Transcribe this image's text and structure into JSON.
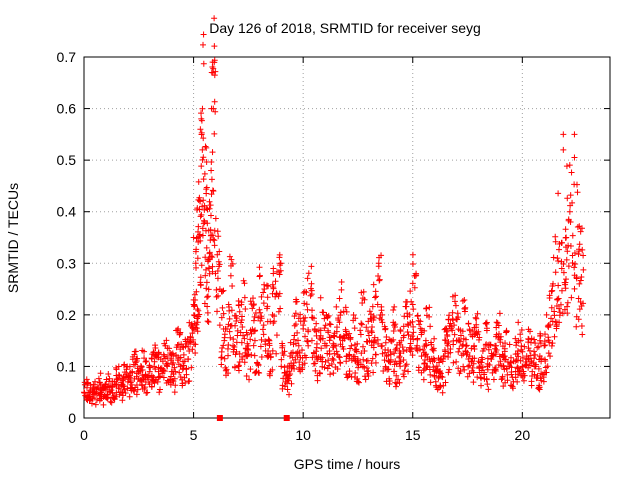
{
  "chart_data": {
    "type": "scatter",
    "title": "Day 126 of 2018, SRMTID for receiver seyg",
    "xlabel": "GPS time / hours",
    "ylabel": "SRMTID / TECUs",
    "xlim": [
      0,
      24
    ],
    "ylim": [
      0,
      0.7
    ],
    "x_ticks": [
      0,
      5,
      10,
      15,
      20
    ],
    "x_tick_labels": [
      "0",
      "5",
      "10",
      "15",
      "20"
    ],
    "y_ticks": [
      0,
      0.1,
      0.2,
      0.3,
      0.4,
      0.5,
      0.6,
      0.7
    ],
    "y_tick_labels": [
      "0",
      "0.1",
      "0.2",
      "0.3",
      "0.4",
      "0.5",
      "0.6",
      "0.7"
    ],
    "grid": true,
    "marker": "+",
    "color": "#ff0000",
    "series": [
      {
        "name": "SRMTID",
        "x": [
          0.0,
          0.2,
          0.4,
          0.6,
          0.8,
          1.0,
          1.2,
          1.4,
          1.6,
          1.8,
          2.0,
          2.2,
          2.4,
          2.6,
          2.8,
          3.0,
          3.2,
          3.4,
          3.6,
          3.8,
          4.0,
          4.2,
          4.4,
          4.6,
          4.8,
          5.0,
          5.1,
          5.2,
          5.3,
          5.4,
          5.5,
          5.6,
          5.7,
          5.8,
          5.9,
          6.0,
          6.2,
          6.4,
          6.6,
          6.8,
          7.0,
          7.2,
          7.4,
          7.6,
          7.8,
          8.0,
          8.2,
          8.4,
          8.6,
          8.8,
          9.0,
          9.2,
          9.4,
          9.6,
          9.8,
          10.0,
          10.2,
          10.4,
          10.6,
          10.8,
          11.0,
          11.2,
          11.4,
          11.6,
          11.8,
          12.0,
          12.2,
          12.4,
          12.6,
          12.8,
          13.0,
          13.2,
          13.4,
          13.6,
          13.8,
          14.0,
          14.2,
          14.4,
          14.6,
          14.8,
          15.0,
          15.2,
          15.4,
          15.6,
          15.8,
          16.0,
          16.2,
          16.4,
          16.6,
          16.8,
          17.0,
          17.2,
          17.4,
          17.6,
          17.8,
          18.0,
          18.2,
          18.4,
          18.6,
          18.8,
          19.0,
          19.2,
          19.4,
          19.6,
          19.8,
          20.0,
          20.2,
          20.4,
          20.6,
          20.8,
          21.0,
          21.2,
          21.4,
          21.6,
          21.8,
          22.0,
          22.2,
          22.4,
          22.6
        ],
        "y": [
          0.05,
          0.04,
          0.05,
          0.06,
          0.05,
          0.06,
          0.05,
          0.07,
          0.06,
          0.08,
          0.07,
          0.09,
          0.08,
          0.1,
          0.08,
          0.09,
          0.1,
          0.09,
          0.11,
          0.1,
          0.09,
          0.12,
          0.1,
          0.11,
          0.13,
          0.22,
          0.3,
          0.35,
          0.42,
          0.52,
          0.38,
          0.33,
          0.29,
          0.48,
          0.6,
          0.28,
          0.18,
          0.15,
          0.22,
          0.14,
          0.16,
          0.19,
          0.12,
          0.17,
          0.15,
          0.21,
          0.18,
          0.13,
          0.2,
          0.24,
          0.1,
          0.07,
          0.12,
          0.16,
          0.14,
          0.18,
          0.21,
          0.15,
          0.12,
          0.17,
          0.14,
          0.13,
          0.16,
          0.19,
          0.15,
          0.12,
          0.14,
          0.11,
          0.17,
          0.13,
          0.16,
          0.19,
          0.22,
          0.14,
          0.12,
          0.15,
          0.11,
          0.13,
          0.16,
          0.18,
          0.22,
          0.14,
          0.12,
          0.15,
          0.11,
          0.09,
          0.08,
          0.12,
          0.14,
          0.17,
          0.15,
          0.16,
          0.13,
          0.12,
          0.14,
          0.11,
          0.13,
          0.1,
          0.12,
          0.14,
          0.11,
          0.12,
          0.1,
          0.11,
          0.13,
          0.1,
          0.12,
          0.11,
          0.1,
          0.12,
          0.14,
          0.18,
          0.26,
          0.31,
          0.29,
          0.35,
          0.38,
          0.32,
          0.26
        ]
      }
    ],
    "peaks": [
      {
        "x": 5.87,
        "y": 0.69
      },
      {
        "x": 5.83,
        "y": 0.67
      },
      {
        "x": 5.82,
        "y": 0.6
      },
      {
        "x": 5.31,
        "y": 0.56
      },
      {
        "x": 5.35,
        "y": 0.58
      },
      {
        "x": 21.87,
        "y": 0.55
      },
      {
        "x": 21.87,
        "y": 0.52
      },
      {
        "x": 13.45,
        "y": 0.3
      },
      {
        "x": 5.0,
        "y": 0.35
      }
    ],
    "outlier_markers_at_zero": [
      {
        "x": 6.2,
        "y": 0.0
      },
      {
        "x": 9.25,
        "y": 0.0
      }
    ]
  }
}
